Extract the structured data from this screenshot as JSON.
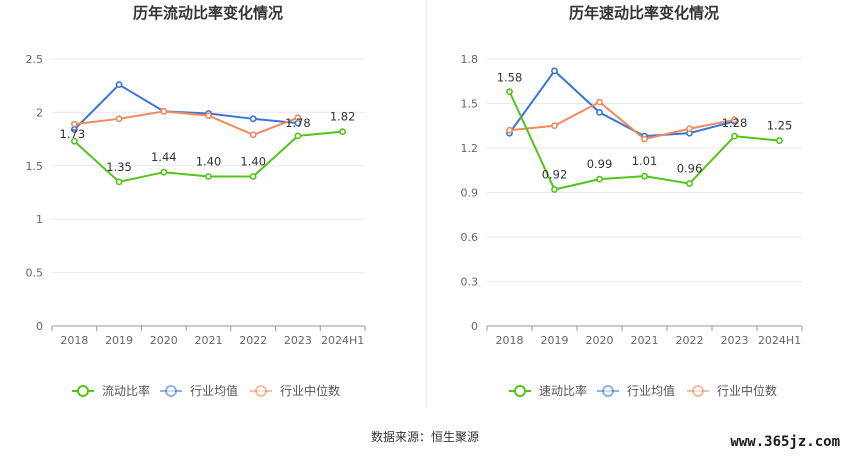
{
  "source_text": "数据来源：恒生聚源",
  "watermark": "www.365jz.com",
  "chart_data": [
    {
      "type": "line",
      "title": "历年流动比率变化情况",
      "categories": [
        "2018",
        "2019",
        "2020",
        "2021",
        "2022",
        "2023",
        "2024H1"
      ],
      "ylim": [
        0,
        2.5
      ],
      "yticks": [
        0,
        0.5,
        1,
        1.5,
        2,
        2.5
      ],
      "ytick_labels": [
        "0",
        "0.5",
        "1",
        "1.5",
        "2",
        "2.5"
      ],
      "grid": true,
      "legend_position": "bottom",
      "series": [
        {
          "name": "流动比率",
          "color": "#52c41a",
          "values": [
            1.73,
            1.35,
            1.44,
            1.4,
            1.4,
            1.78,
            1.82
          ],
          "labels": [
            "1.73",
            "1.35",
            "1.44",
            "1.40",
            "1.40",
            "1.78",
            "1.82"
          ]
        },
        {
          "name": "行业均值",
          "color": "#3b74d6",
          "values": [
            1.84,
            2.26,
            2.01,
            1.99,
            1.94,
            1.9,
            null
          ]
        },
        {
          "name": "行业中位数",
          "color": "#f08a5d",
          "values": [
            1.89,
            1.94,
            2.01,
            1.97,
            1.79,
            1.95,
            null
          ]
        }
      ]
    },
    {
      "type": "line",
      "title": "历年速动比率变化情况",
      "categories": [
        "2018",
        "2019",
        "2020",
        "2021",
        "2022",
        "2023",
        "2024H1"
      ],
      "ylim": [
        0,
        1.8
      ],
      "yticks": [
        0,
        0.3,
        0.6,
        0.9,
        1.2,
        1.5,
        1.8
      ],
      "ytick_labels": [
        "0",
        "0.3",
        "0.6",
        "0.9",
        "1.2",
        "1.5",
        "1.8"
      ],
      "grid": true,
      "legend_position": "bottom",
      "series": [
        {
          "name": "速动比率",
          "color": "#52c41a",
          "values": [
            1.58,
            0.92,
            0.99,
            1.01,
            0.96,
            1.28,
            1.25
          ],
          "labels": [
            "1.58",
            "0.92",
            "0.99",
            "1.01",
            "0.96",
            "1.28",
            "1.25"
          ]
        },
        {
          "name": "行业均值",
          "color": "#3b74d6",
          "values": [
            1.3,
            1.72,
            1.44,
            1.28,
            1.3,
            1.38,
            null
          ]
        },
        {
          "name": "行业中位数",
          "color": "#f08a5d",
          "values": [
            1.32,
            1.35,
            1.51,
            1.26,
            1.33,
            1.39,
            null
          ]
        }
      ]
    }
  ]
}
